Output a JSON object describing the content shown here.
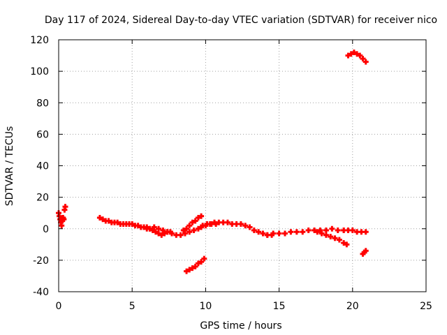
{
  "chart_data": {
    "type": "scatter",
    "title": "Day 117 of 2024, Sidereal Day-to-day VTEC variation (SDTVAR) for receiver nico",
    "xlabel": "GPS time / hours",
    "ylabel": "SDTVAR / TECUs",
    "xlim": [
      0,
      25
    ],
    "ylim": [
      -40,
      120
    ],
    "xticks": [
      0,
      5,
      10,
      15,
      20,
      25
    ],
    "yticks": [
      -40,
      -20,
      0,
      20,
      40,
      60,
      80,
      100,
      120
    ],
    "grid": true,
    "marker_color": "#ff0000",
    "series": [
      {
        "name": "SDTVAR",
        "x": [
          0.0,
          0.05,
          0.1,
          0.15,
          0.2,
          0.25,
          0.3,
          0.35,
          0.4,
          0.45,
          2.8,
          3.0,
          3.2,
          3.4,
          3.6,
          3.8,
          4.0,
          4.2,
          4.4,
          4.6,
          4.8,
          5.0,
          5.2,
          5.4,
          5.6,
          5.8,
          6.0,
          6.2,
          6.0,
          6.2,
          6.4,
          6.6,
          6.8,
          7.0,
          7.2,
          7.4,
          7.6,
          6.5,
          6.8,
          7.1,
          7.4,
          7.7,
          8.0,
          8.3,
          8.6,
          8.9,
          9.2,
          9.5,
          9.8,
          10.1,
          10.4,
          10.7,
          8.5,
          8.7,
          8.9,
          9.1,
          9.3,
          9.5,
          9.7,
          9.7,
          10.0,
          10.3,
          10.6,
          10.9,
          11.2,
          11.5,
          11.8,
          12.1,
          12.4,
          12.7,
          13.0,
          13.3,
          13.6,
          13.9,
          14.2,
          14.5,
          8.7,
          8.9,
          9.1,
          9.3,
          9.5,
          9.7,
          9.9,
          14.2,
          14.6,
          15.0,
          15.4,
          15.8,
          16.2,
          16.6,
          17.0,
          17.4,
          17.8,
          18.2,
          18.6,
          19.0,
          19.4,
          17.6,
          17.9,
          18.2,
          18.5,
          18.8,
          19.1,
          19.4,
          19.6,
          19.4,
          19.7,
          20.0,
          20.3,
          20.6,
          20.9,
          19.7,
          19.9,
          20.1,
          20.3,
          20.5,
          20.7,
          20.9,
          20.7,
          20.8,
          20.9
        ],
        "y": [
          10,
          8,
          6,
          4,
          2,
          5,
          7,
          6,
          12,
          14,
          7,
          6,
          5,
          5,
          4,
          4,
          4,
          3,
          3,
          3,
          3,
          3,
          2,
          2,
          1,
          1,
          0,
          0,
          1,
          0,
          -1,
          -2,
          -3,
          -4,
          -3,
          -2,
          -2,
          1,
          0,
          -1,
          -2,
          -3,
          -4,
          -4,
          -3,
          -2,
          -1,
          0,
          2,
          3,
          3,
          3,
          -1,
          0,
          2,
          4,
          5,
          7,
          8,
          1,
          2,
          3,
          4,
          4,
          4,
          4,
          3,
          3,
          3,
          2,
          1,
          -1,
          -2,
          -3,
          -4,
          -4,
          -27,
          -26,
          -25,
          -24,
          -22,
          -21,
          -19,
          -4,
          -3,
          -3,
          -3,
          -2,
          -2,
          -2,
          -1,
          -1,
          -1,
          -1,
          0,
          -1,
          -1,
          -2,
          -3,
          -4,
          -5,
          -6,
          -7,
          -9,
          -10,
          -1,
          -1,
          -1,
          -2,
          -2,
          -2,
          110,
          111,
          112,
          111,
          110,
          108,
          106,
          -16,
          -15,
          -14
        ]
      }
    ]
  }
}
